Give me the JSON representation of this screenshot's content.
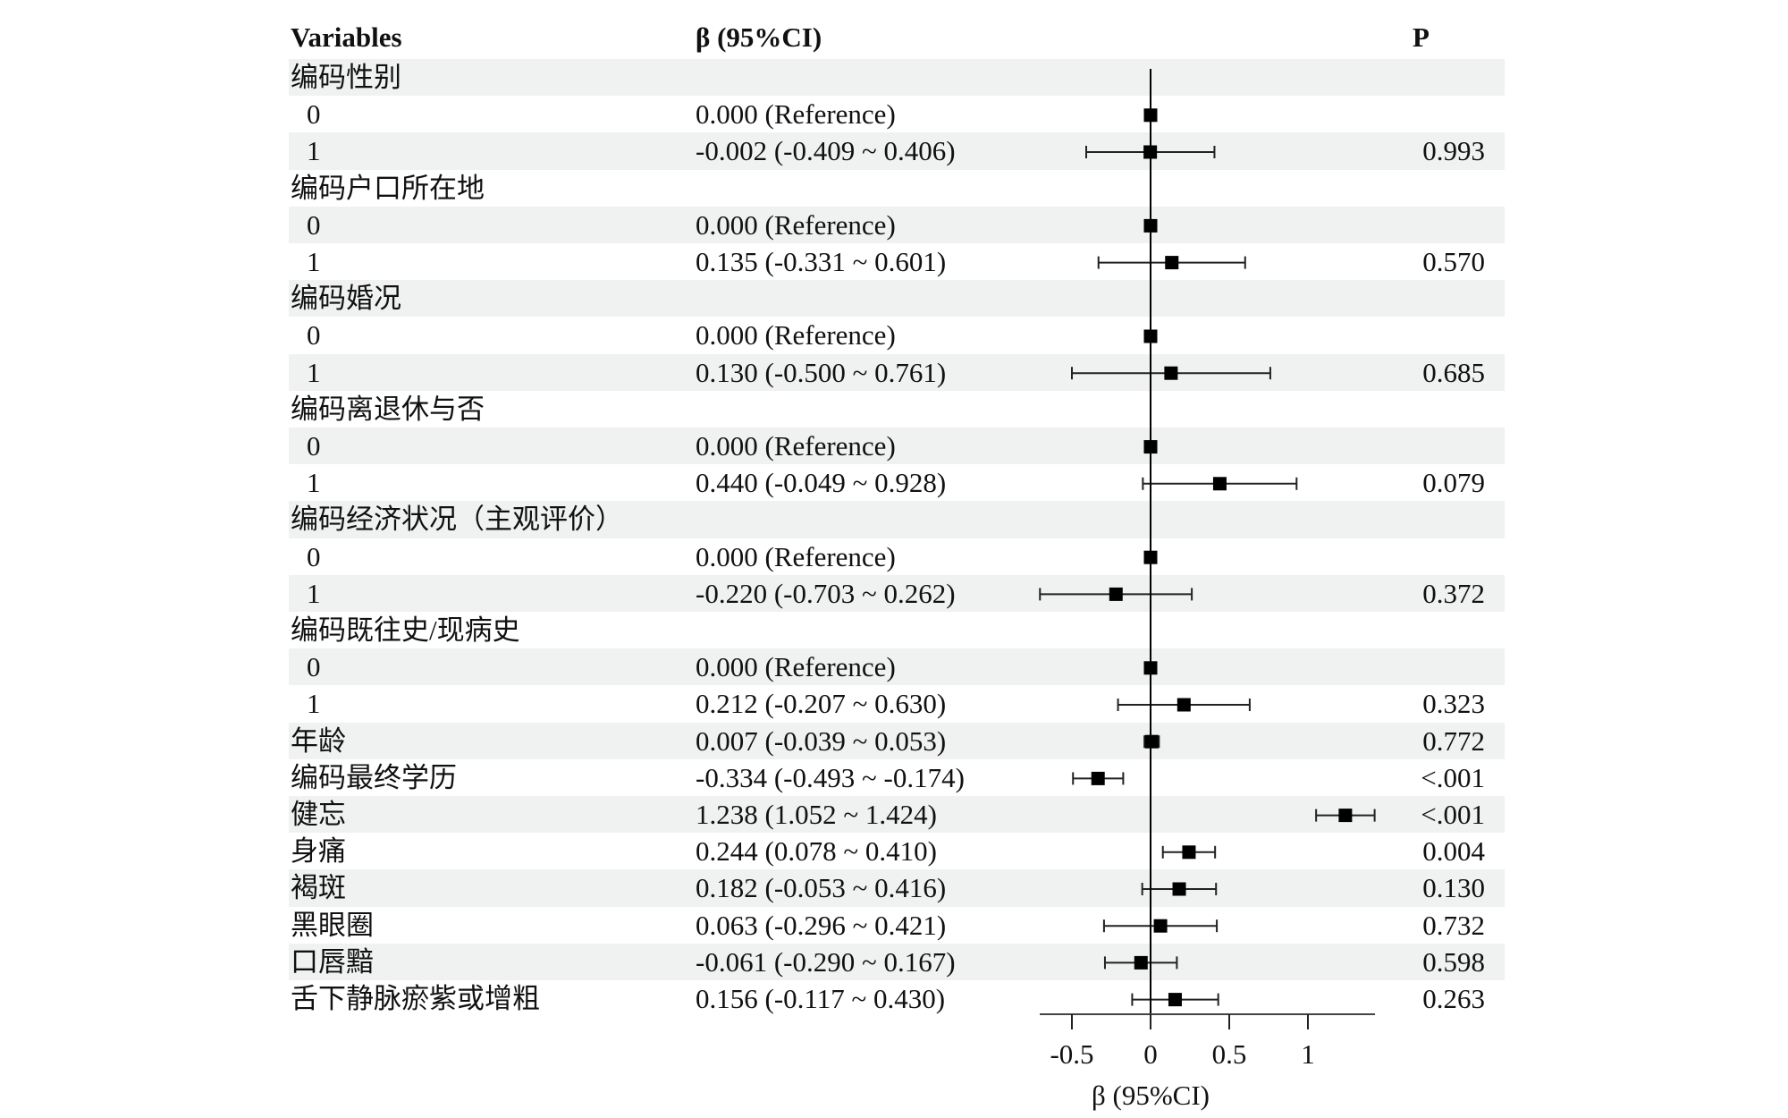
{
  "chart_data": {
    "type": "forest",
    "headers": {
      "variables": "Variables",
      "beta": "β (95%CI)",
      "p": "P"
    },
    "xlabel": "β (95%CI)",
    "xticks": [
      -0.5,
      0,
      0.5,
      1
    ],
    "xtick_labels": [
      "-0.5",
      "0",
      "0.5",
      "1"
    ],
    "xlim": [
      -0.7,
      1.42
    ],
    "reference_line": 0,
    "rows": [
      {
        "label": "编码性别",
        "group": true
      },
      {
        "label": "0",
        "beta": "0.000 (Reference)",
        "p": "",
        "est": 0
      },
      {
        "label": "1",
        "beta": "-0.002 (-0.409 ~ 0.406)",
        "p": "0.993",
        "est": -0.002,
        "lo": -0.409,
        "hi": 0.406
      },
      {
        "label": "编码户口所在地",
        "group": true
      },
      {
        "label": "0",
        "beta": "0.000 (Reference)",
        "p": "",
        "est": 0
      },
      {
        "label": "1",
        "beta": "0.135 (-0.331 ~ 0.601)",
        "p": "0.570",
        "est": 0.135,
        "lo": -0.331,
        "hi": 0.601
      },
      {
        "label": "编码婚况",
        "group": true
      },
      {
        "label": "0",
        "beta": "0.000 (Reference)",
        "p": "",
        "est": 0
      },
      {
        "label": "1",
        "beta": "0.130 (-0.500 ~ 0.761)",
        "p": "0.685",
        "est": 0.13,
        "lo": -0.5,
        "hi": 0.761
      },
      {
        "label": "编码离退休与否",
        "group": true
      },
      {
        "label": "0",
        "beta": "0.000 (Reference)",
        "p": "",
        "est": 0
      },
      {
        "label": "1",
        "beta": "0.440 (-0.049 ~ 0.928)",
        "p": "0.079",
        "est": 0.44,
        "lo": -0.049,
        "hi": 0.928
      },
      {
        "label": "编码经济状况（主观评价）",
        "group": true
      },
      {
        "label": "0",
        "beta": "0.000 (Reference)",
        "p": "",
        "est": 0
      },
      {
        "label": "1",
        "beta": "-0.220 (-0.703 ~ 0.262)",
        "p": "0.372",
        "est": -0.22,
        "lo": -0.703,
        "hi": 0.262
      },
      {
        "label": "编码既往史/现病史",
        "group": true
      },
      {
        "label": "0",
        "beta": "0.000 (Reference)",
        "p": "",
        "est": 0
      },
      {
        "label": "1",
        "beta": "0.212 (-0.207 ~ 0.630)",
        "p": "0.323",
        "est": 0.212,
        "lo": -0.207,
        "hi": 0.63
      },
      {
        "label": "年龄",
        "beta": "0.007 (-0.039 ~ 0.053)",
        "p": "0.772",
        "est": 0.007,
        "lo": -0.039,
        "hi": 0.053
      },
      {
        "label": "编码最终学历",
        "beta": "-0.334 (-0.493 ~ -0.174)",
        "p": "<.001",
        "est": -0.334,
        "lo": -0.493,
        "hi": -0.174
      },
      {
        "label": "健忘",
        "beta": "1.238 (1.052 ~ 1.424)",
        "p": "<.001",
        "est": 1.238,
        "lo": 1.052,
        "hi": 1.424
      },
      {
        "label": "身痛",
        "beta": "0.244 (0.078 ~ 0.410)",
        "p": "0.004",
        "est": 0.244,
        "lo": 0.078,
        "hi": 0.41
      },
      {
        "label": "褐斑",
        "beta": "0.182 (-0.053 ~ 0.416)",
        "p": "0.130",
        "est": 0.182,
        "lo": -0.053,
        "hi": 0.416
      },
      {
        "label": "黑眼圈",
        "beta": "0.063 (-0.296 ~ 0.421)",
        "p": "0.732",
        "est": 0.063,
        "lo": -0.296,
        "hi": 0.421
      },
      {
        "label": "口唇黯",
        "beta": "-0.061 (-0.290 ~ 0.167)",
        "p": "0.598",
        "est": -0.061,
        "lo": -0.29,
        "hi": 0.167
      },
      {
        "label": "舌下静脉瘀紫或增粗",
        "beta": "0.156 (-0.117 ~ 0.430)",
        "p": "0.263",
        "est": 0.156,
        "lo": -0.117,
        "hi": 0.43
      }
    ]
  }
}
